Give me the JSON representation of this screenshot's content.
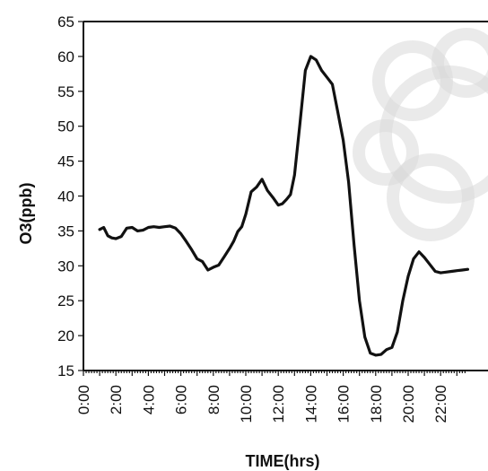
{
  "chart_data": {
    "type": "line",
    "title": "",
    "xlabel": "TIME(hrs)",
    "ylabel": "O3(ppb)",
    "ylim": [
      15,
      65
    ],
    "y_ticks": [
      15,
      20,
      25,
      30,
      35,
      40,
      45,
      50,
      55,
      60,
      65
    ],
    "xlim_hours": [
      0,
      23.5
    ],
    "x_tick_labels": [
      "0:00",
      "2:00",
      "4:00",
      "6:00",
      "8:00",
      "10:00",
      "12:00",
      "14:00",
      "16:00",
      "18:00",
      "20:00",
      "22:00"
    ],
    "grid": false,
    "legend": "none",
    "series": [
      {
        "x": [
          "1:00",
          "1:15",
          "1:30",
          "1:45",
          "2:00",
          "2:20",
          "2:40",
          "3:00",
          "3:20",
          "3:40",
          "4:00",
          "4:20",
          "4:40",
          "5:00",
          "5:20",
          "5:40",
          "6:00",
          "6:20",
          "6:40",
          "7:00",
          "7:20",
          "7:40",
          "8:00",
          "8:20",
          "8:40",
          "9:00",
          "9:15",
          "9:30",
          "9:45",
          "10:00",
          "10:20",
          "10:40",
          "11:00",
          "11:20",
          "11:40",
          "12:00",
          "12:15",
          "12:30",
          "12:45",
          "13:00",
          "13:20",
          "13:40",
          "14:00",
          "14:20",
          "14:40",
          "15:00",
          "15:20",
          "15:40",
          "16:00",
          "16:20",
          "16:40",
          "17:00",
          "17:20",
          "17:40",
          "18:00",
          "18:20",
          "18:40",
          "19:00",
          "19:20",
          "19:40",
          "20:00",
          "20:20",
          "20:40",
          "21:00",
          "21:20",
          "21:40",
          "22:00",
          "22:20",
          "22:40",
          "23:00",
          "23:20",
          "23:40"
        ],
        "values": [
          35.2,
          35.5,
          34.3,
          34.0,
          33.9,
          34.2,
          35.4,
          35.5,
          35.0,
          35.1,
          35.5,
          35.6,
          35.5,
          35.6,
          35.7,
          35.4,
          34.6,
          33.5,
          32.3,
          31.0,
          30.6,
          29.4,
          29.8,
          30.1,
          31.3,
          32.5,
          33.5,
          34.9,
          35.6,
          37.4,
          40.6,
          41.3,
          42.4,
          40.8,
          39.8,
          38.7,
          38.9,
          39.5,
          40.2,
          43.0,
          50.3,
          58.0,
          60.0,
          59.5,
          58.0,
          57.0,
          56.0,
          52.0,
          48.0,
          42.0,
          33.0,
          25.0,
          19.8,
          17.5,
          17.2,
          17.3,
          18.0,
          18.3,
          20.5,
          25.0,
          28.5,
          31.0,
          32.0,
          31.2,
          30.2,
          29.2,
          29.0,
          29.1,
          29.2,
          29.3,
          29.4,
          29.5
        ],
        "note_x_units": "hours of day"
      }
    ]
  }
}
